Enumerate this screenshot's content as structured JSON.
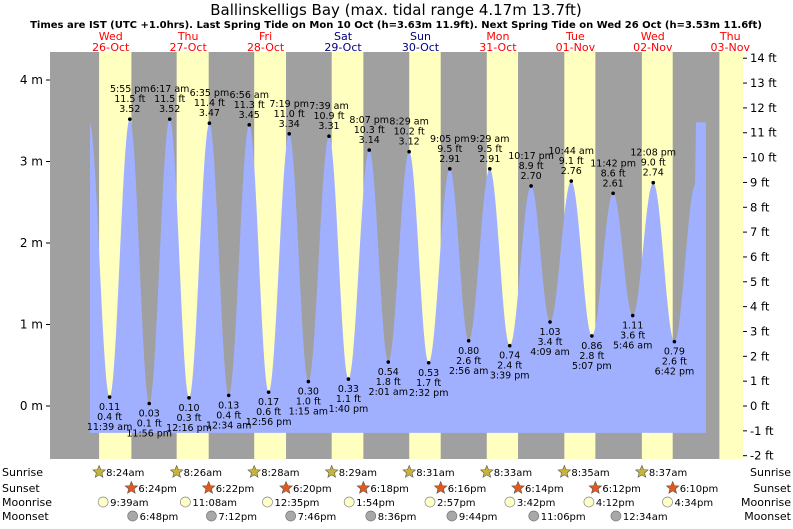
{
  "chart_data": {
    "type": "area",
    "title": "Ballinskelligs Bay (max. tidal range 4.17m 13.7ft)",
    "subtitle": "Times are IST (UTC +1.0hrs). Last Spring Tide on Mon 10 Oct (h=3.63m 11.9ft). Next Spring Tide on Wed 26 Oct (h=3.53m 11.6ft)",
    "days": [
      {
        "dow": "Wed",
        "date": "26-Oct",
        "weekend": false
      },
      {
        "dow": "Thu",
        "date": "27-Oct",
        "weekend": false
      },
      {
        "dow": "Fri",
        "date": "28-Oct",
        "weekend": false
      },
      {
        "dow": "Sat",
        "date": "29-Oct",
        "weekend": true
      },
      {
        "dow": "Sun",
        "date": "30-Oct",
        "weekend": true
      },
      {
        "dow": "Mon",
        "date": "31-Oct",
        "weekend": false
      },
      {
        "dow": "Tue",
        "date": "01-Nov",
        "weekend": false
      },
      {
        "dow": "Wed",
        "date": "02-Nov",
        "weekend": false
      },
      {
        "dow": "Thu",
        "date": "03-Nov",
        "weekend": false
      }
    ],
    "y_left": {
      "unit": "m",
      "range": [
        -0.55,
        4.35
      ],
      "ticks": [
        {
          "v": 0,
          "label": "0 m"
        },
        {
          "v": 1,
          "label": "1 m"
        },
        {
          "v": 2,
          "label": "2 m"
        },
        {
          "v": 3,
          "label": "3 m"
        },
        {
          "v": 4,
          "label": "4 m"
        }
      ]
    },
    "y_right": {
      "unit": "ft",
      "ticks": [
        "-2 ft",
        "-1 ft",
        "0 ft",
        "1 ft",
        "2 ft",
        "3 ft",
        "4 ft",
        "5 ft",
        "6 ft",
        "7 ft",
        "8 ft",
        "9 ft",
        "10 ft",
        "11 ft",
        "12 ft",
        "13 ft",
        "14 ft"
      ]
    },
    "tides": [
      {
        "type": "high",
        "day": 0,
        "time": "5:55 pm",
        "m": "3.52",
        "ft": "11.5 ft"
      },
      {
        "type": "low",
        "day": 0,
        "time": "11:39 am",
        "m": "0.11",
        "ft": "0.4 ft"
      },
      {
        "type": "low",
        "day": 0,
        "time": "11:56 pm",
        "m": "0.03",
        "ft": "0.1 ft"
      },
      {
        "type": "high",
        "day": 1,
        "time": "6:17 am",
        "m": "3.52",
        "ft": "11.5 ft"
      },
      {
        "type": "low",
        "day": 1,
        "time": "12:16 pm",
        "m": "0.10",
        "ft": "0.3 ft"
      },
      {
        "type": "high",
        "day": 1,
        "time": "6:35 pm",
        "m": "3.47",
        "ft": "11.4 ft"
      },
      {
        "type": "low",
        "day": 2,
        "time": "12:34 am",
        "m": "0.13",
        "ft": "0.4 ft"
      },
      {
        "type": "high",
        "day": 2,
        "time": "6:56 am",
        "m": "3.45",
        "ft": "11.3 ft"
      },
      {
        "type": "low",
        "day": 2,
        "time": "12:56 pm",
        "m": "0.17",
        "ft": "0.6 ft"
      },
      {
        "type": "high",
        "day": 2,
        "time": "7:19 pm",
        "m": "3.34",
        "ft": "11.0 ft"
      },
      {
        "type": "low",
        "day": 3,
        "time": "1:15 am",
        "m": "0.30",
        "ft": "1.0 ft"
      },
      {
        "type": "high",
        "day": 3,
        "time": "7:39 am",
        "m": "3.31",
        "ft": "10.9 ft"
      },
      {
        "type": "low",
        "day": 3,
        "time": "1:40 pm",
        "m": "0.33",
        "ft": "1.1 ft"
      },
      {
        "type": "high",
        "day": 3,
        "time": "8:07 pm",
        "m": "3.14",
        "ft": "10.3 ft"
      },
      {
        "type": "low",
        "day": 4,
        "time": "2:01 am",
        "m": "0.54",
        "ft": "1.8 ft"
      },
      {
        "type": "high",
        "day": 4,
        "time": "8:29 am",
        "m": "3.12",
        "ft": "10.2 ft"
      },
      {
        "type": "low",
        "day": 4,
        "time": "2:32 pm",
        "m": "0.53",
        "ft": "1.7 ft"
      },
      {
        "type": "high",
        "day": 4,
        "time": "9:05 pm",
        "m": "2.91",
        "ft": "9.5 ft"
      },
      {
        "type": "low",
        "day": 5,
        "time": "2:56 am",
        "m": "0.80",
        "ft": "2.6 ft"
      },
      {
        "type": "high",
        "day": 5,
        "time": "9:29 am",
        "m": "2.91",
        "ft": "9.5 ft"
      },
      {
        "type": "low",
        "day": 5,
        "time": "3:39 pm",
        "m": "0.74",
        "ft": "2.4 ft"
      },
      {
        "type": "high",
        "day": 5,
        "time": "10:17 pm",
        "m": "2.70",
        "ft": "8.9 ft"
      },
      {
        "type": "low",
        "day": 6,
        "time": "4:09 am",
        "m": "1.03",
        "ft": "3.4 ft"
      },
      {
        "type": "high",
        "day": 6,
        "time": "10:44 am",
        "m": "2.76",
        "ft": "9.1 ft"
      },
      {
        "type": "low",
        "day": 6,
        "time": "5:07 pm",
        "m": "0.86",
        "ft": "2.8 ft"
      },
      {
        "type": "high",
        "day": 6,
        "time": "11:42 pm",
        "m": "2.61",
        "ft": "8.6 ft"
      },
      {
        "type": "low",
        "day": 7,
        "time": "5:46 am",
        "m": "1.11",
        "ft": "3.6 ft"
      },
      {
        "type": "high",
        "day": 7,
        "time": "12:08 pm",
        "m": "2.74",
        "ft": "9.0 ft"
      },
      {
        "type": "low",
        "day": 7,
        "time": "6:42 pm",
        "m": "0.79",
        "ft": "2.6 ft"
      }
    ],
    "sun_moon": {
      "labels": {
        "sunrise": "Sunrise",
        "sunset": "Sunset",
        "moonrise": "Moonrise",
        "moonset": "Moonset"
      },
      "sunrise": [
        "8:24am",
        "8:26am",
        "8:28am",
        "8:29am",
        "8:31am",
        "8:33am",
        "8:35am",
        "8:37am"
      ],
      "sunset": [
        "6:24pm",
        "6:22pm",
        "6:20pm",
        "6:18pm",
        "6:16pm",
        "6:14pm",
        "6:12pm",
        "6:10pm"
      ],
      "moonrise": [
        {
          "day": 0,
          "time": "9:39am"
        },
        {
          "day": 1,
          "time": "11:08am"
        },
        {
          "day": 2,
          "time": "12:35pm"
        },
        {
          "day": 3,
          "time": "1:54pm"
        },
        {
          "day": 4,
          "time": "2:57pm"
        },
        {
          "day": 5,
          "time": "3:42pm"
        },
        {
          "day": 6,
          "time": "4:12pm"
        },
        {
          "day": 7,
          "time": "4:34pm"
        }
      ],
      "moonset": [
        {
          "day": 0,
          "time": "6:48pm"
        },
        {
          "day": 1,
          "time": "7:12pm"
        },
        {
          "day": 2,
          "time": "7:46pm"
        },
        {
          "day": 3,
          "time": "8:36pm"
        },
        {
          "day": 4,
          "time": "9:44pm"
        },
        {
          "day": 5,
          "time": "11:06pm"
        },
        {
          "day": 7,
          "time": "12:34am"
        }
      ]
    },
    "colors": {
      "night": "#a0a0a0",
      "day": "#ffffc0",
      "water": "#a0b0ff",
      "weekday_label": "#ff0000",
      "weekend_label": "#000080",
      "sunrise_star": "#c8b43c",
      "sunset_star": "#e05a1e",
      "moonrise": "#ffffc8",
      "moonset": "#a8a8a8"
    }
  }
}
